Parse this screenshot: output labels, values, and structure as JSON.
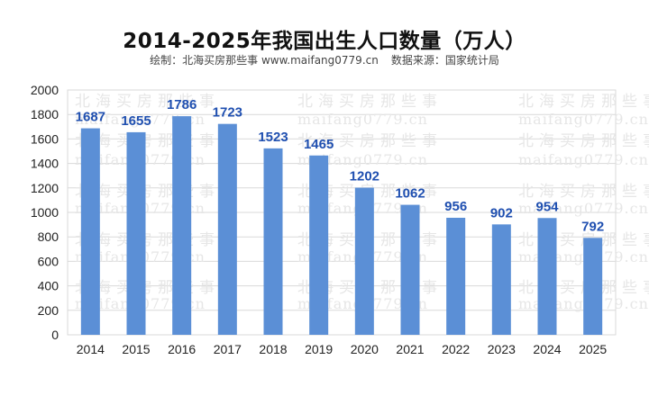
{
  "header": {
    "title": "2014-2025年我国出生人口数量（万人）",
    "credit": "绘制：北海买房那些事 www.maifang0779.cn",
    "source": "数据来源：国家统计局"
  },
  "watermark": {
    "text_cn": "北海买房那些事",
    "text_url": "maifang0779.cn"
  },
  "colors": {
    "bar": "#5b8fd6",
    "data_label": "#1f4fb0",
    "grid": "#d9d9d9",
    "watermark": "#e6e6e6"
  },
  "chart_data": {
    "type": "bar",
    "title": "2014-2025年我国出生人口数量（万人）",
    "categories": [
      "2014",
      "2015",
      "2016",
      "2017",
      "2018",
      "2019",
      "2020",
      "2021",
      "2022",
      "2023",
      "2024",
      "2025"
    ],
    "values": [
      1687,
      1655,
      1786,
      1723,
      1523,
      1465,
      1202,
      1062,
      956,
      902,
      954,
      792
    ],
    "xlabel": "",
    "ylabel": "",
    "ylim": [
      0,
      2000
    ],
    "yticks": [
      0,
      200,
      400,
      600,
      800,
      1000,
      1200,
      1400,
      1600,
      1800,
      2000
    ],
    "grid": true,
    "legend": "none",
    "data_labels": true
  }
}
